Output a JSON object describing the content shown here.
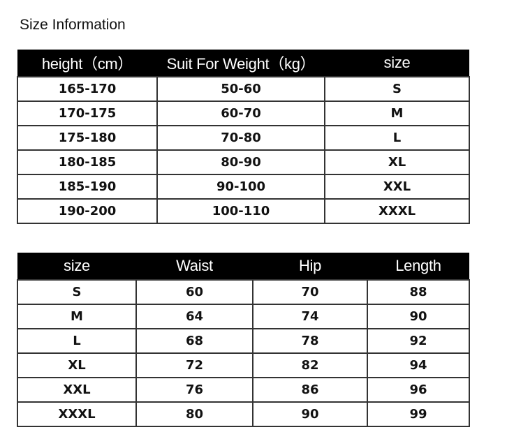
{
  "title": "Size Information",
  "table1": {
    "headers": [
      "height（cm）",
      "Suit For Weight（kg）",
      "size"
    ],
    "rows": [
      [
        "165-170",
        "50-60",
        "S"
      ],
      [
        "170-175",
        "60-70",
        "M"
      ],
      [
        "175-180",
        "70-80",
        "L"
      ],
      [
        "180-185",
        "80-90",
        "XL"
      ],
      [
        "185-190",
        "90-100",
        "XXL"
      ],
      [
        "190-200",
        "100-110",
        "XXXL"
      ]
    ]
  },
  "table2": {
    "headers": [
      "size",
      "Waist",
      "Hip",
      "Length"
    ],
    "rows": [
      [
        "S",
        "60",
        "70",
        "88"
      ],
      [
        "M",
        "64",
        "74",
        "90"
      ],
      [
        "L",
        "68",
        "78",
        "92"
      ],
      [
        "XL",
        "72",
        "82",
        "94"
      ],
      [
        "XXL",
        "76",
        "86",
        "96"
      ],
      [
        "XXXL",
        "80",
        "90",
        "99"
      ]
    ]
  }
}
